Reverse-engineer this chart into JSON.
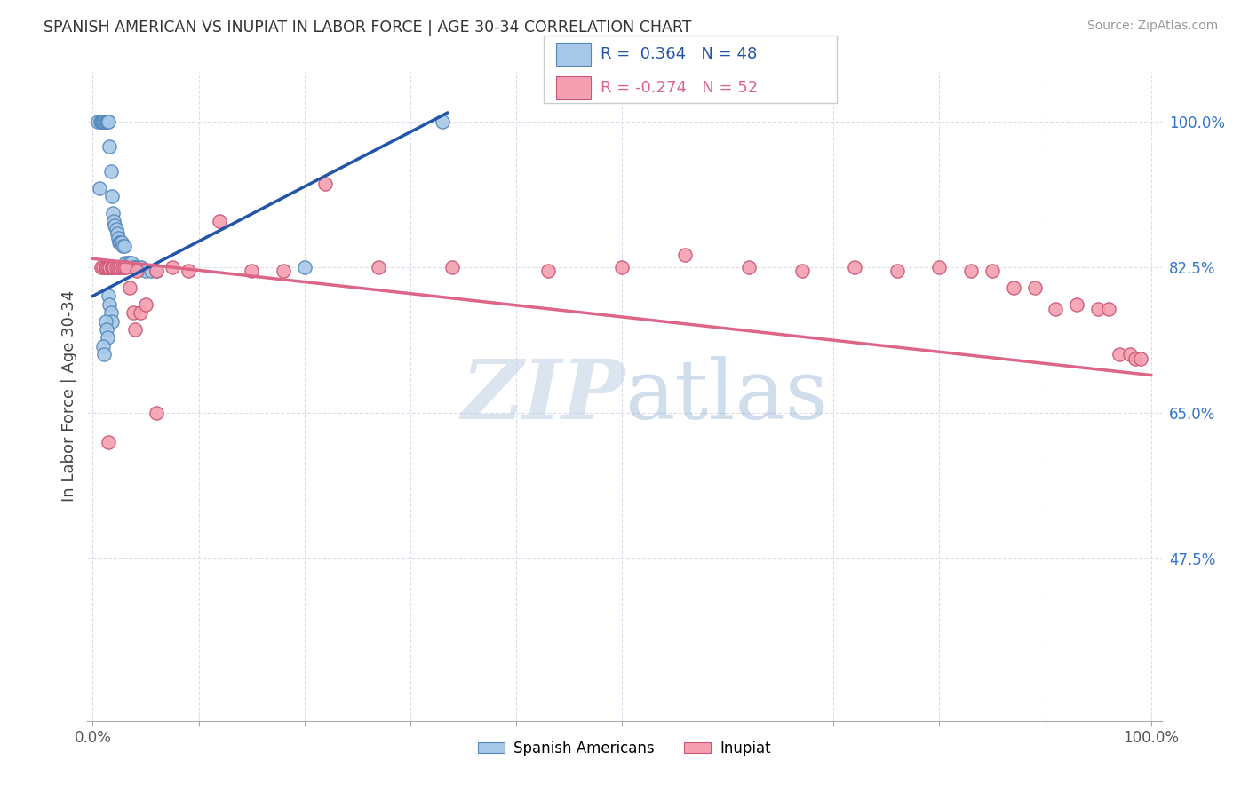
{
  "title": "SPANISH AMERICAN VS INUPIAT IN LABOR FORCE | AGE 30-34 CORRELATION CHART",
  "source": "Source: ZipAtlas.com",
  "ylabel": "In Labor Force | Age 30-34",
  "blue_color": "#a8c8e8",
  "blue_edge": "#5588bb",
  "pink_color": "#f4a0b0",
  "pink_edge": "#cc5577",
  "trendline_blue": "#2255aa",
  "trendline_pink": "#dd6688",
  "ytick_color": "#3377cc",
  "watermark_color": "#ccd8e8",
  "blue_x": [
    0.005,
    0.007,
    0.008,
    0.009,
    0.01,
    0.011,
    0.012,
    0.013,
    0.014,
    0.015,
    0.016,
    0.017,
    0.018,
    0.019,
    0.02,
    0.021,
    0.022,
    0.023,
    0.024,
    0.025,
    0.026,
    0.027,
    0.028,
    0.03,
    0.031,
    0.033,
    0.035,
    0.037,
    0.038,
    0.04,
    0.042,
    0.044,
    0.046,
    0.05,
    0.055,
    0.06,
    0.015,
    0.016,
    0.017,
    0.018,
    0.012,
    0.013,
    0.014,
    0.01,
    0.011,
    0.2,
    0.33,
    0.006
  ],
  "blue_y": [
    1.0,
    1.0,
    1.0,
    1.0,
    1.0,
    1.0,
    1.0,
    1.0,
    1.0,
    1.0,
    0.97,
    0.94,
    0.91,
    0.89,
    0.88,
    0.875,
    0.87,
    0.865,
    0.86,
    0.855,
    0.855,
    0.855,
    0.85,
    0.85,
    0.83,
    0.83,
    0.83,
    0.83,
    0.825,
    0.825,
    0.825,
    0.825,
    0.825,
    0.82,
    0.82,
    0.82,
    0.79,
    0.78,
    0.77,
    0.76,
    0.76,
    0.75,
    0.74,
    0.73,
    0.72,
    0.825,
    1.0,
    0.92
  ],
  "pink_x": [
    0.008,
    0.01,
    0.012,
    0.013,
    0.015,
    0.016,
    0.018,
    0.019,
    0.02,
    0.022,
    0.024,
    0.026,
    0.028,
    0.03,
    0.032,
    0.035,
    0.038,
    0.04,
    0.042,
    0.045,
    0.05,
    0.06,
    0.075,
    0.09,
    0.12,
    0.15,
    0.18,
    0.22,
    0.27,
    0.34,
    0.43,
    0.5,
    0.56,
    0.62,
    0.67,
    0.72,
    0.76,
    0.8,
    0.83,
    0.85,
    0.87,
    0.89,
    0.91,
    0.93,
    0.95,
    0.96,
    0.97,
    0.98,
    0.985,
    0.99,
    0.06,
    0.015
  ],
  "pink_y": [
    0.825,
    0.825,
    0.825,
    0.825,
    0.825,
    0.825,
    0.825,
    0.825,
    0.825,
    0.825,
    0.825,
    0.825,
    0.825,
    0.825,
    0.825,
    0.8,
    0.77,
    0.75,
    0.82,
    0.77,
    0.78,
    0.82,
    0.825,
    0.82,
    0.88,
    0.82,
    0.82,
    0.925,
    0.825,
    0.825,
    0.82,
    0.825,
    0.84,
    0.825,
    0.82,
    0.825,
    0.82,
    0.825,
    0.82,
    0.82,
    0.8,
    0.8,
    0.775,
    0.78,
    0.775,
    0.775,
    0.72,
    0.72,
    0.715,
    0.715,
    0.65,
    0.615
  ],
  "blue_trend_x0": 0.0,
  "blue_trend_y0": 0.79,
  "blue_trend_x1": 0.335,
  "blue_trend_y1": 1.01,
  "pink_trend_x0": 0.0,
  "pink_trend_y0": 0.835,
  "pink_trend_x1": 1.0,
  "pink_trend_y1": 0.695,
  "xlim": [
    -0.005,
    1.01
  ],
  "ylim": [
    0.28,
    1.06
  ],
  "yticks": [
    0.475,
    0.65,
    0.825,
    1.0
  ],
  "ytick_labels": [
    "47.5%",
    "65.0%",
    "82.5%",
    "100.0%"
  ],
  "xtick_labels_show": [
    "0.0%",
    "100.0%"
  ],
  "grid_color": "#ddddee",
  "legend_r_blue": "R =  0.364   N = 48",
  "legend_r_pink": "R = -0.274   N = 52"
}
